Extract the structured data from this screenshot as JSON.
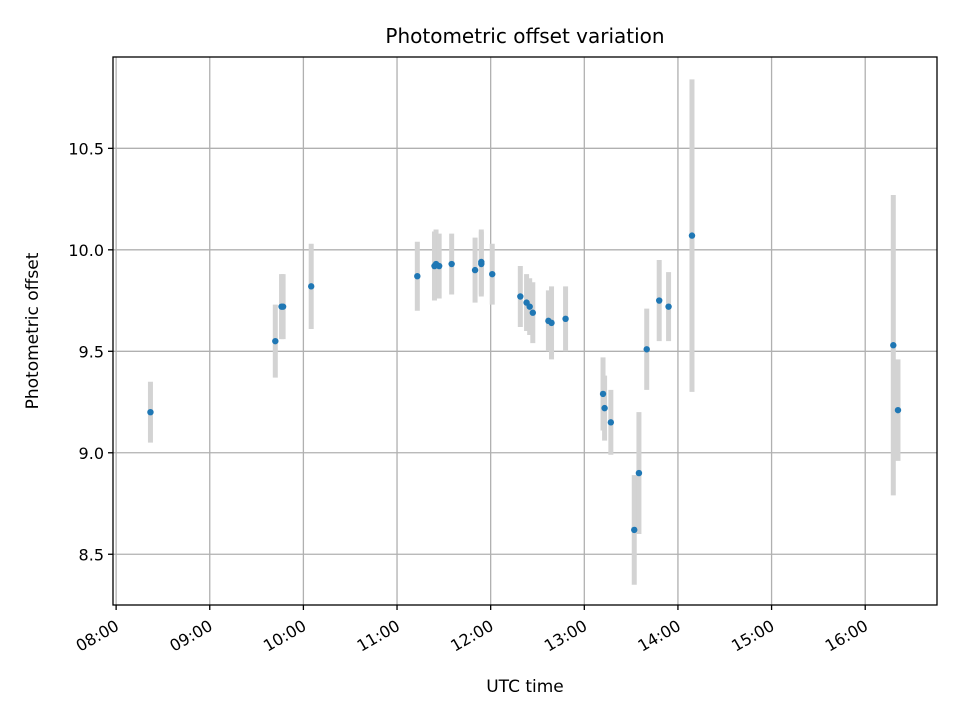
{
  "chart_data": {
    "type": "scatter",
    "title": "Photometric offset variation",
    "xlabel": "UTC time",
    "ylabel": "Photometric offset",
    "x_ticks": [
      "08:00",
      "09:00",
      "10:00",
      "11:00",
      "12:00",
      "13:00",
      "14:00",
      "15:00",
      "16:00"
    ],
    "y_ticks": [
      "8.5",
      "9.0",
      "9.5",
      "10.0",
      "10.5"
    ],
    "xlim": [
      "07:58",
      "16:46"
    ],
    "ylim": [
      8.25,
      10.95
    ],
    "grid": true,
    "errorbar_color": "#d3d3d3",
    "point_color": "#1f77b4",
    "points": [
      {
        "x": "08:22",
        "y": 9.2,
        "err": 0.15
      },
      {
        "x": "09:42",
        "y": 9.55,
        "err": 0.18
      },
      {
        "x": "09:46",
        "y": 9.72,
        "err": 0.16
      },
      {
        "x": "09:47",
        "y": 9.72,
        "err": 0.16
      },
      {
        "x": "10:05",
        "y": 9.82,
        "err": 0.21
      },
      {
        "x": "11:13",
        "y": 9.87,
        "err": 0.17
      },
      {
        "x": "11:24",
        "y": 9.92,
        "err": 0.17
      },
      {
        "x": "11:25",
        "y": 9.93,
        "err": 0.17
      },
      {
        "x": "11:27",
        "y": 9.92,
        "err": 0.16
      },
      {
        "x": "11:35",
        "y": 9.93,
        "err": 0.15
      },
      {
        "x": "11:50",
        "y": 9.9,
        "err": 0.16
      },
      {
        "x": "11:54",
        "y": 9.94,
        "err": 0.16
      },
      {
        "x": "11:54",
        "y": 9.93,
        "err": 0.16
      },
      {
        "x": "12:01",
        "y": 9.88,
        "err": 0.15
      },
      {
        "x": "12:19",
        "y": 9.77,
        "err": 0.15
      },
      {
        "x": "12:23",
        "y": 9.74,
        "err": 0.14
      },
      {
        "x": "12:25",
        "y": 9.72,
        "err": 0.14
      },
      {
        "x": "12:27",
        "y": 9.69,
        "err": 0.15
      },
      {
        "x": "12:37",
        "y": 9.65,
        "err": 0.15
      },
      {
        "x": "12:39",
        "y": 9.64,
        "err": 0.18
      },
      {
        "x": "12:48",
        "y": 9.66,
        "err": 0.16
      },
      {
        "x": "13:12",
        "y": 9.29,
        "err": 0.18
      },
      {
        "x": "13:13",
        "y": 9.22,
        "err": 0.16
      },
      {
        "x": "13:17",
        "y": 9.15,
        "err": 0.16
      },
      {
        "x": "13:32",
        "y": 8.62,
        "err": 0.27
      },
      {
        "x": "13:35",
        "y": 8.9,
        "err": 0.3
      },
      {
        "x": "13:40",
        "y": 9.51,
        "err": 0.2
      },
      {
        "x": "13:48",
        "y": 9.75,
        "err": 0.2
      },
      {
        "x": "13:54",
        "y": 9.72,
        "err": 0.17
      },
      {
        "x": "14:09",
        "y": 10.07,
        "err": 0.77
      },
      {
        "x": "16:18",
        "y": 9.53,
        "err": 0.74
      },
      {
        "x": "16:21",
        "y": 9.21,
        "err": 0.25
      }
    ]
  }
}
